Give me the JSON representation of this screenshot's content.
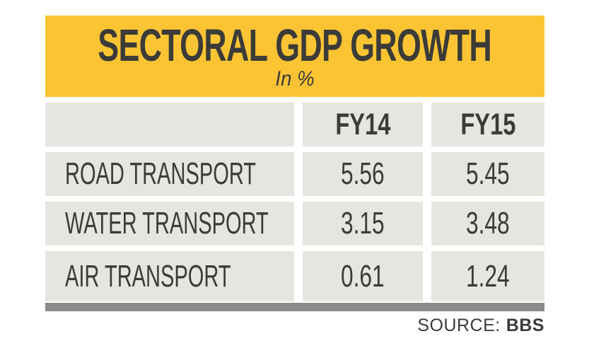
{
  "banner": {
    "title": "SECTORAL GDP GROWTH",
    "subtitle": "In %",
    "background_color": "#fcc433"
  },
  "table": {
    "columns": [
      "",
      "FY14",
      "FY15"
    ],
    "rows": [
      {
        "label": "ROAD TRANSPORT",
        "fy14": "5.56",
        "fy15": "5.45"
      },
      {
        "label": "WATER TRANSPORT",
        "fy14": "3.15",
        "fy15": "3.48"
      },
      {
        "label": "AIR TRANSPORT",
        "fy14": "0.61",
        "fy15": "1.24"
      }
    ],
    "cell_background_color": "#e6e5df"
  },
  "footer": {
    "source_label": "SOURCE:",
    "source_value": "BBS",
    "rule_color": "#8b8b89"
  },
  "text_color": "#3b3b3b",
  "chart_data": {
    "type": "table",
    "title": "SECTORAL GDP GROWTH",
    "subtitle": "In %",
    "unit": "percent",
    "categories": [
      "ROAD TRANSPORT",
      "WATER TRANSPORT",
      "AIR TRANSPORT"
    ],
    "series": [
      {
        "name": "FY14",
        "values": [
          5.56,
          3.15,
          0.61
        ]
      },
      {
        "name": "FY15",
        "values": [
          5.45,
          3.48,
          1.24
        ]
      }
    ],
    "source": "BBS"
  }
}
